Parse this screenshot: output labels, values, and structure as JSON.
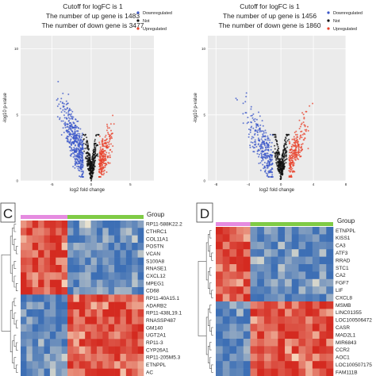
{
  "panels_top": [
    {
      "cutoff": "Cutoff for logFC is 1",
      "up": "The number of up gene is 1483",
      "down": "The number of down gene is 3477",
      "legend": [
        "Downregulated",
        "Not",
        "Upregulated"
      ]
    },
    {
      "cutoff": "Cutoff for logFC is 1",
      "up": "The number of up gene is 1456",
      "down": "The number of down gene is 1860",
      "legend": [
        "Downregulated",
        "Not",
        "Upregulated"
      ]
    }
  ],
  "colors": {
    "down": "#3a55c8",
    "not": "#111111",
    "up": "#e8412b",
    "panel_bg": "#ebebeb",
    "grid": "#ffffff",
    "heat_high": "#d42a20",
    "heat_mid": "#fbefd2",
    "heat_low": "#3d6fb5",
    "group_a": "#e58be0",
    "group_b": "#7fcb45"
  },
  "chart_data": [
    {
      "type": "scatter",
      "xlabel": "log2 fold change",
      "ylabel": "-log10 p-value",
      "xlim": [
        -9,
        8
      ],
      "ylim": [
        0,
        11
      ],
      "xticks": [
        "-5",
        "0",
        "5"
      ],
      "yticks": [
        "0",
        "5",
        "10"
      ],
      "cutoff_logFC": 1,
      "series": [
        {
          "name": "Downregulated",
          "count": 3477
        },
        {
          "name": "Not"
        },
        {
          "name": "Upregulated",
          "count": 1483
        }
      ]
    },
    {
      "type": "scatter",
      "xlabel": "log2 fold change",
      "ylabel": "-log10 p-value",
      "xlim": [
        -9,
        8
      ],
      "ylim": [
        0,
        11
      ],
      "xticks": [
        "-8",
        "-4",
        "0",
        "4",
        "8"
      ],
      "yticks": [
        "0",
        "5",
        "10"
      ],
      "cutoff_logFC": 1,
      "series": [
        {
          "name": "Downregulated",
          "count": 1860
        },
        {
          "name": "Not"
        },
        {
          "name": "Upregulated",
          "count": 1456
        }
      ]
    },
    {
      "type": "heatmap",
      "panel_label": "C",
      "legend_title": "Group",
      "columns_group_a": 8,
      "columns_group_b": 13,
      "rows": [
        "RP11-588K22.2",
        "CTHRC1",
        "COL11A1",
        "POSTN",
        "VCAN",
        "S100A8",
        "RNASE1",
        "CXCL12",
        "MPEG1",
        "CD68",
        "RP11-40A15.1",
        "ADARB2",
        "RP11-438L19.1",
        "RNASSP487",
        "GM140",
        "UGT2A1",
        "RP11-3",
        "CYP26A1",
        "RP11-205M5.3",
        "ETNPPL",
        "AC"
      ],
      "pattern": [
        1,
        1,
        1,
        1,
        1,
        1,
        1,
        1,
        1,
        1,
        -1,
        -1,
        -1,
        -1,
        -1,
        -1,
        -1,
        -1,
        -1,
        -1,
        -1
      ]
    },
    {
      "type": "heatmap",
      "panel_label": "D",
      "legend_title": "Group",
      "columns_group_a": 5,
      "columns_group_b": 12,
      "rows": [
        "ETNPPL",
        "KISS1",
        "CA3",
        "ATF3",
        "RRAD",
        "STC1",
        "CA2",
        "FGF7",
        "LIF",
        "CXCL8",
        "MSMB",
        "LINC01355",
        "LOC100506472",
        "CASR",
        "MAD2L1",
        "MIR6843",
        "CCR2",
        "AOC1",
        "LOC100507175",
        "FAM111B"
      ],
      "pattern": [
        1,
        1,
        1,
        1,
        1,
        1,
        1,
        1,
        1,
        1,
        -1,
        -1,
        -1,
        -1,
        -1,
        -1,
        -1,
        -1,
        -1,
        -1
      ]
    }
  ]
}
